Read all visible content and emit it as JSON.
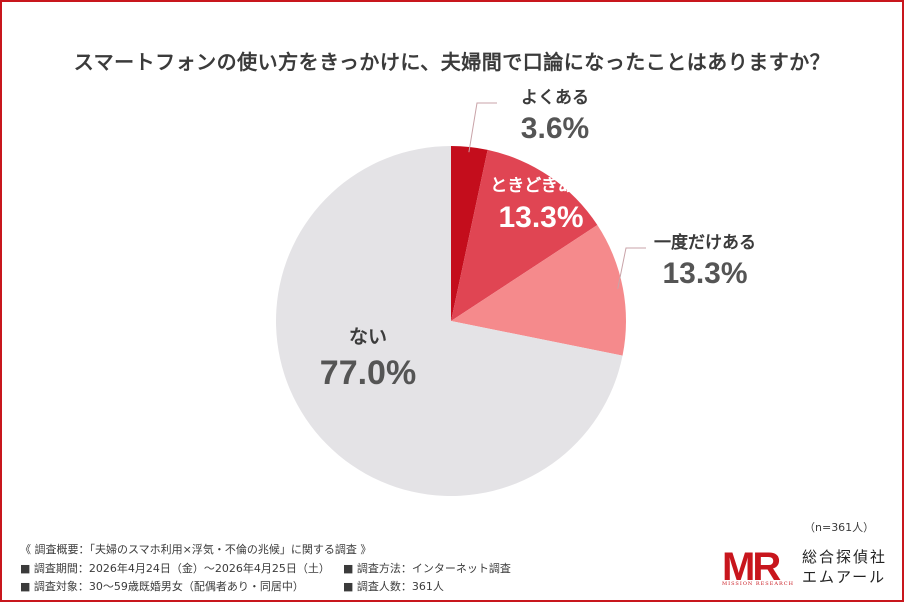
{
  "title": "スマートフォンの使い方をきっかけに、夫婦間で口論になったことはありますか？",
  "colors": {
    "border": "#c8161d",
    "text": "#3b3b3b"
  },
  "chart_data": {
    "type": "pie",
    "title": "スマートフォンの使い方をきっかけに、夫婦間で口論になったことはありますか？",
    "categories": [
      "よくある",
      "ときどきある",
      "一度だけある",
      "ない"
    ],
    "values": [
      3.6,
      13.3,
      13.3,
      77.0
    ],
    "labels": [
      "3.6%",
      "13.3%",
      "13.3%",
      "77.0%"
    ],
    "colors": [
      "#c40d1c",
      "#e04553",
      "#f58a8c",
      "#e4e3e6"
    ],
    "start": "12 o'clock",
    "direction": "clockwise",
    "legend": "none"
  },
  "footer": {
    "survey_overview": "《 調査概要：「夫婦のスマホ利用×浮気・不倫の兆候」に関する調査 》",
    "period": "■ 調査期間：2026年4月24日（金）〜2026年4月25日（土）",
    "method": "■ 調査方法：インターネット調査",
    "target": "■ 調査対象：30〜59歳既婚男女（配偶者あり・同居中）",
    "count": "■ 調査人数：361人",
    "sample_n": "（n=361人）"
  },
  "logo": {
    "mark": "MR",
    "sub": "MISSION RESEARCH",
    "name_line1": "総合探偵社",
    "name_line2": "エムアール"
  }
}
